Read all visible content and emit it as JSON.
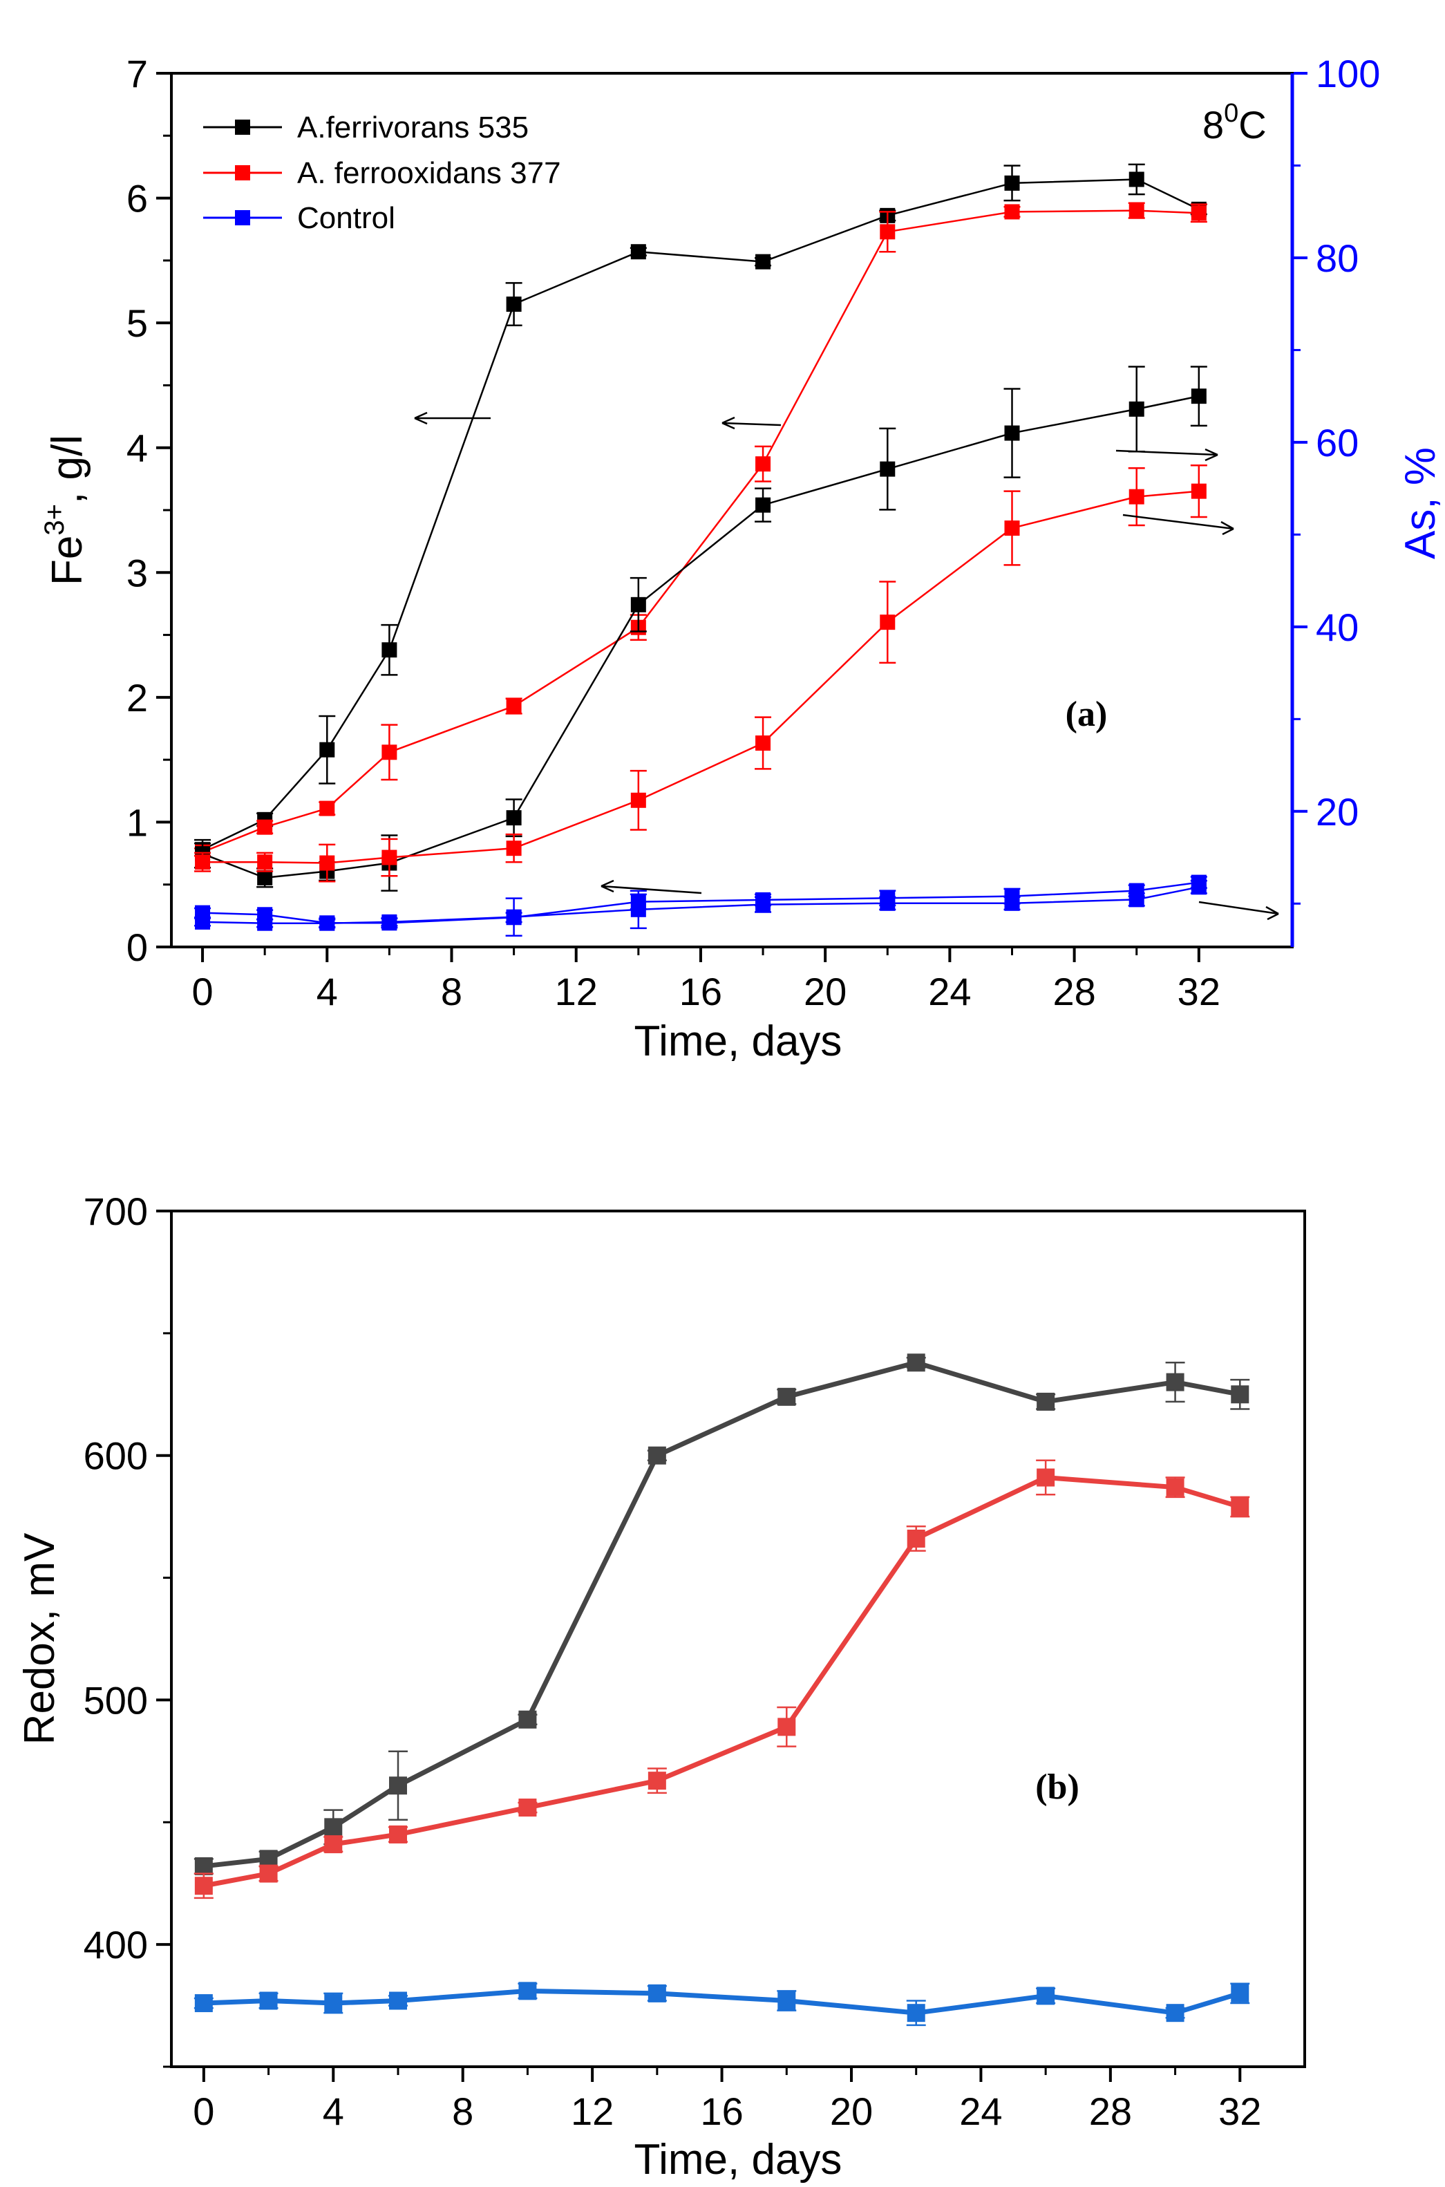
{
  "chart_data": [
    {
      "type": "line",
      "panel_label": "(a)",
      "temperature_label": "8",
      "temperature_sup": "0",
      "temperature_unit": "C",
      "xlabel": "Time, days",
      "ylabel_base": "Fe",
      "ylabel_sup": "3+",
      "ylabel_rest": ", g/l",
      "ylabel_right": "As, %",
      "x_ticks": [
        0,
        4,
        8,
        12,
        16,
        20,
        24,
        28,
        32
      ],
      "y_ticks": [
        0,
        1,
        2,
        3,
        4,
        5,
        6,
        7
      ],
      "y_right_ticks": [
        20,
        40,
        60,
        80,
        100
      ],
      "xlim": [
        -1,
        35
      ],
      "ylim": [
        0,
        7
      ],
      "y_right_lim": [
        5.3,
        100
      ],
      "grid": false,
      "legend_position": "top-left",
      "legend": [
        "A.ferrivorans 535",
        "A. ferrooxidans 377",
        "Control"
      ],
      "x": [
        0,
        2,
        4,
        6,
        10,
        14,
        18,
        22,
        26,
        30,
        32
      ],
      "series": [
        {
          "name": "A.ferrivorans 535",
          "quantity": "Fe3+",
          "axis": "left",
          "color": "#000000",
          "values": [
            0.78,
            1.02,
            1.58,
            2.38,
            5.15,
            5.57,
            5.49,
            5.86,
            6.12,
            6.15,
            5.91
          ],
          "errors": [
            0.05,
            0.05,
            0.27,
            0.2,
            0.17,
            0.03,
            0.03,
            0.04,
            0.14,
            0.12,
            0.04
          ]
        },
        {
          "name": "A. ferrooxidans 377",
          "quantity": "Fe3+",
          "axis": "left",
          "color": "#ff0000",
          "values": [
            0.76,
            0.96,
            1.11,
            1.56,
            1.93,
            2.56,
            3.87,
            5.73,
            5.89,
            5.9,
            5.88
          ],
          "errors": [
            0.03,
            0.05,
            0.05,
            0.22,
            0.06,
            0.1,
            0.14,
            0.16,
            0.04,
            0.06,
            0.07
          ]
        },
        {
          "name": "Control",
          "quantity": "Fe3+",
          "axis": "left",
          "color": "#0000ff",
          "values": [
            0.2,
            0.19,
            0.19,
            0.2,
            0.24,
            0.3,
            0.34,
            0.35,
            0.35,
            0.38,
            0.48
          ],
          "errors": [
            0.03,
            0.03,
            0.03,
            0.03,
            0.15,
            0.15,
            0.06,
            0.05,
            0.05,
            0.05,
            0.05
          ]
        },
        {
          "name": "A.ferrivorans 535",
          "quantity": "As",
          "axis": "right",
          "color": "#000000",
          "values": [
            15.4,
            12.8,
            13.5,
            14.4,
            19.3,
            42.4,
            53.2,
            57.1,
            61.0,
            63.6,
            65.0
          ],
          "errors": [
            1.5,
            1.0,
            1.0,
            3.0,
            2.0,
            2.9,
            1.8,
            4.4,
            4.8,
            4.6,
            3.2
          ]
        },
        {
          "name": "A. ferrooxidans 377",
          "quantity": "As",
          "axis": "right",
          "color": "#ff0000",
          "values": [
            14.5,
            14.5,
            14.4,
            15.0,
            16.0,
            21.2,
            27.4,
            40.5,
            50.7,
            54.1,
            54.7
          ],
          "errors": [
            1.0,
            1.0,
            2.0,
            2.0,
            1.5,
            3.2,
            2.8,
            4.4,
            4.0,
            3.1,
            2.8
          ]
        },
        {
          "name": "Control",
          "quantity": "As",
          "axis": "right",
          "color": "#0000ff",
          "values": [
            9.0,
            8.8,
            7.9,
            7.9,
            8.5,
            10.2,
            10.4,
            10.6,
            10.8,
            11.4,
            12.3
          ],
          "errors": [
            0.5,
            0.5,
            0.5,
            0.5,
            0.5,
            0.8,
            0.6,
            0.8,
            0.8,
            0.6,
            0.6
          ]
        }
      ]
    },
    {
      "type": "line",
      "panel_label": "(b)",
      "xlabel": "Time, days",
      "ylabel": "Redox, mV",
      "x_ticks": [
        0,
        4,
        8,
        12,
        16,
        20,
        24,
        28,
        32
      ],
      "y_ticks": [
        400,
        500,
        600,
        700
      ],
      "xlim": [
        -1,
        34
      ],
      "ylim": [
        350,
        700
      ],
      "grid": false,
      "x": [
        0,
        2,
        4,
        6,
        10,
        14,
        18,
        22,
        26,
        30,
        32
      ],
      "series": [
        {
          "name": "A.ferrivorans 535",
          "color": "#454545",
          "values": [
            432,
            435,
            448,
            465,
            492,
            600,
            624,
            638,
            622,
            630,
            625
          ],
          "errors": [
            3,
            3,
            7,
            14,
            2,
            2,
            3,
            2,
            3,
            8,
            6
          ]
        },
        {
          "name": "A. ferrooxidans 377",
          "color": "#e8413f",
          "values": [
            424,
            429,
            441,
            445,
            456,
            467,
            489,
            566,
            591,
            587,
            579
          ],
          "errors": [
            5,
            3,
            3,
            3,
            2,
            5,
            8,
            5,
            7,
            4,
            4
          ]
        },
        {
          "name": "Control",
          "color": "#1a6fd6",
          "values": [
            376,
            377,
            376,
            377,
            381,
            380,
            377,
            372,
            379,
            372,
            380
          ],
          "errors": [
            2,
            3,
            4,
            2,
            3,
            3,
            4,
            5,
            3,
            2,
            4
          ]
        }
      ]
    }
  ]
}
